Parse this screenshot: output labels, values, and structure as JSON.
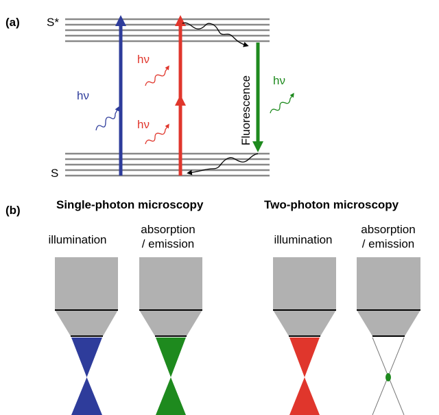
{
  "panel_a": {
    "label": "(a)",
    "excited_state": "S*",
    "ground_state": "S",
    "photon_labels": [
      "hν",
      "hν",
      "hν",
      "hν"
    ],
    "fluorescence": "Fluorescence"
  },
  "panel_b": {
    "label": "(b)",
    "groups": [
      {
        "title": "Single-photon microscopy",
        "columns": [
          {
            "label": [
              "illumination"
            ]
          },
          {
            "label": [
              "absorption",
              "/ emission"
            ]
          }
        ]
      },
      {
        "title": "Two-photon microscopy",
        "columns": [
          {
            "label": [
              "illumination"
            ]
          },
          {
            "label": [
              "absorption",
              "/ emission"
            ]
          }
        ]
      }
    ]
  }
}
